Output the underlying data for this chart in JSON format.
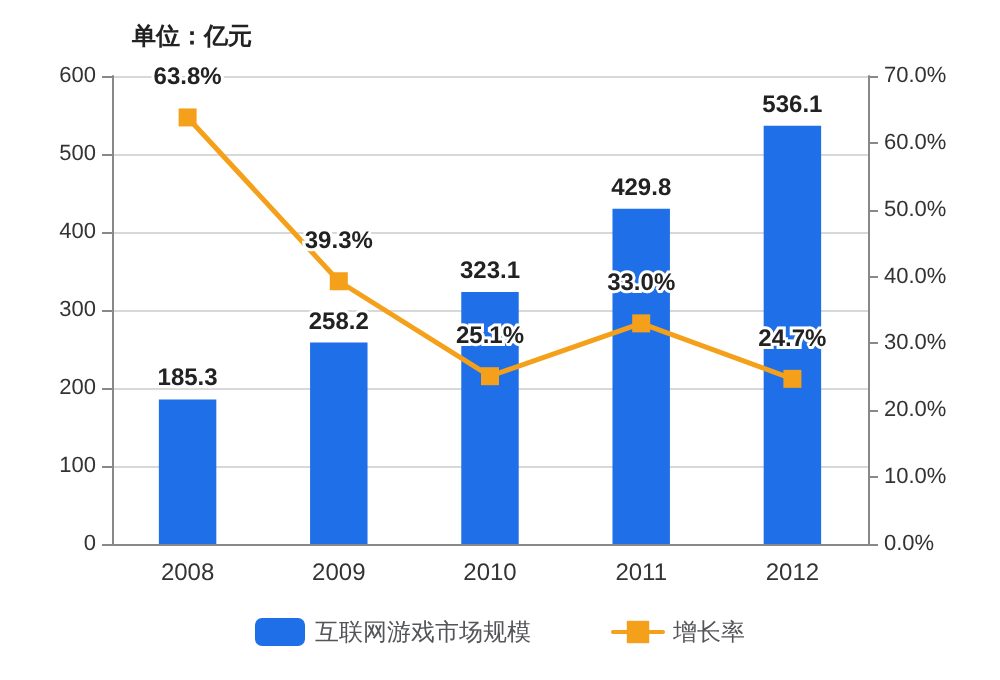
{
  "chart_data": {
    "type": "bar",
    "categories": [
      "2008",
      "2009",
      "2010",
      "2011",
      "2012"
    ],
    "series": [
      {
        "name": "互联网游戏市场规模",
        "color": "#1f6fe8",
        "values": [
          185.3,
          258.2,
          323.1,
          429.8,
          536.1
        ],
        "value_labels": [
          "185.3",
          "258.2",
          "323.1",
          "429.8",
          "536.1"
        ]
      },
      {
        "name": "增长率",
        "type": "line",
        "axis": "y2",
        "color": "#f5a01a",
        "values": [
          63.8,
          39.3,
          25.1,
          33.0,
          24.7
        ],
        "value_labels": [
          "63.8%",
          "39.3%",
          "25.1%",
          "33.0%",
          "24.7%"
        ]
      }
    ],
    "ylim": [
      0,
      600
    ],
    "yticks": [
      0,
      100,
      200,
      300,
      400,
      500,
      600
    ],
    "y2lim": [
      0,
      70
    ],
    "y2ticks": [
      {
        "value": 0,
        "label": "0.0%"
      },
      {
        "value": 10,
        "label": "10.0%"
      },
      {
        "value": 20,
        "label": "20.0%"
      },
      {
        "value": 30,
        "label": "30.0%"
      },
      {
        "value": 40,
        "label": "40.0%"
      },
      {
        "value": 50,
        "label": "50.0%"
      },
      {
        "value": 60,
        "label": "60.0%"
      },
      {
        "value": 70,
        "label": "70.0%"
      }
    ],
    "annotations": [
      "单位：亿元"
    ],
    "grid": "y",
    "legend": "bottom",
    "marker": "square",
    "line_style": "solid"
  }
}
